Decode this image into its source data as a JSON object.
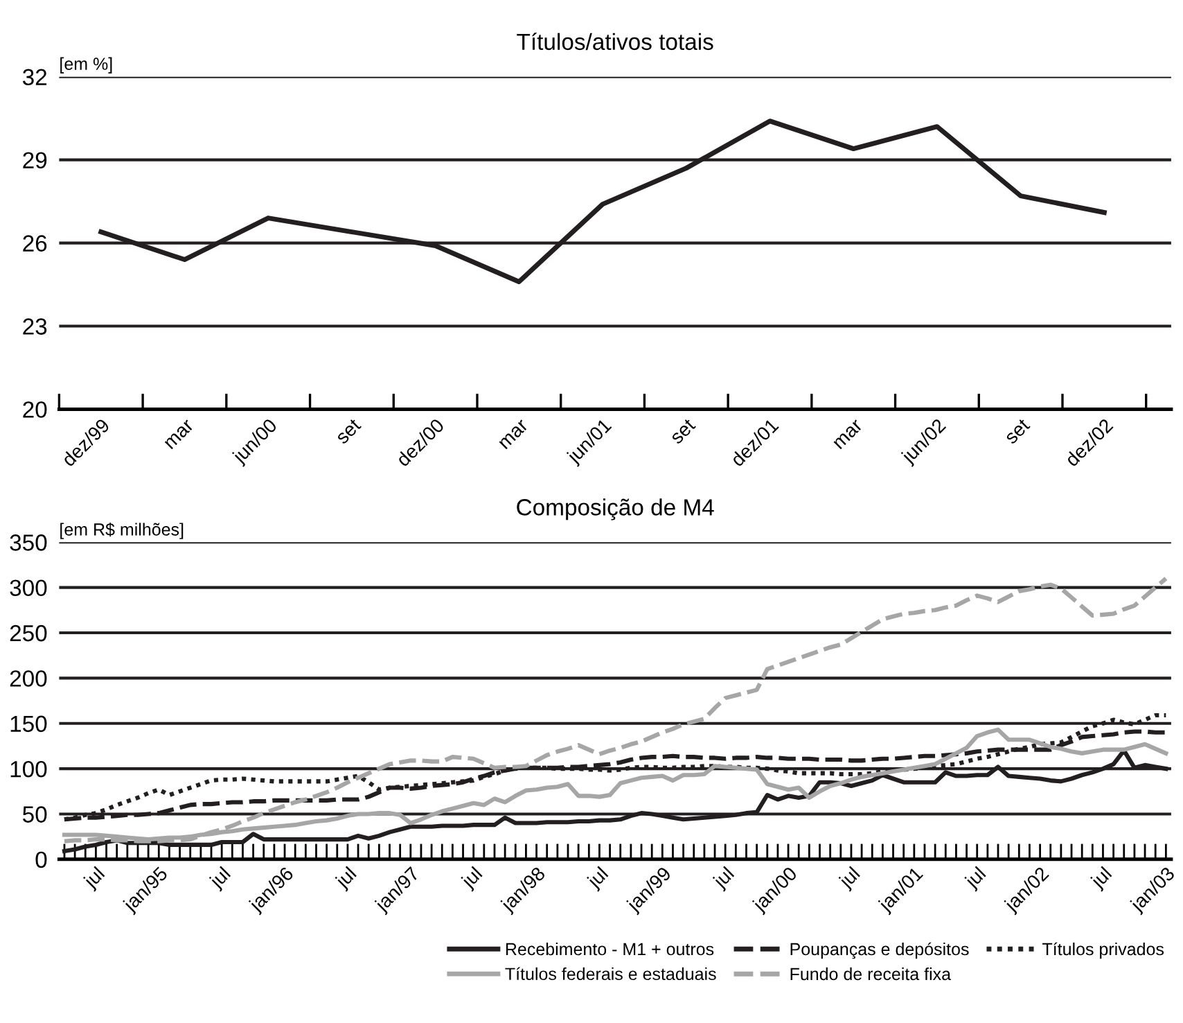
{
  "chart_data": [
    {
      "type": "line",
      "title": "Títulos/ativos totais",
      "ylabel": "[em %]",
      "categories": [
        "dez/99",
        "mar",
        "jun/00",
        "set",
        "dez/00",
        "mar",
        "jun/01",
        "set",
        "dez/01",
        "mar",
        "jun/02",
        "set",
        "dez/02"
      ],
      "series": [
        {
          "color": "#231f20",
          "line_style": "solid",
          "values": [
            26.4,
            25.4,
            26.9,
            26.4,
            25.9,
            24.6,
            27.4,
            28.7,
            30.4,
            29.4,
            30.2,
            27.7,
            27.1
          ]
        }
      ],
      "ylim": [
        20,
        32
      ],
      "yticks": [
        20,
        23,
        26,
        29,
        32
      ],
      "grid": "y",
      "legend": false
    },
    {
      "type": "line",
      "title": "Composição de M4",
      "ylabel": "[em R$ milhões]",
      "categories": [
        null,
        null,
        null,
        "jul",
        null,
        null,
        null,
        null,
        null,
        "jan/95",
        null,
        null,
        null,
        null,
        null,
        "jul",
        null,
        null,
        null,
        null,
        null,
        "jan/96",
        null,
        null,
        null,
        null,
        null,
        "jul",
        null,
        null,
        null,
        null,
        null,
        "jan/97",
        null,
        null,
        null,
        null,
        null,
        "jul",
        null,
        null,
        null,
        null,
        null,
        "jan/98",
        null,
        null,
        null,
        null,
        null,
        "jul",
        null,
        null,
        null,
        null,
        null,
        "jan/99",
        null,
        null,
        null,
        null,
        null,
        "jul",
        null,
        null,
        null,
        null,
        null,
        "jan/00",
        null,
        null,
        null,
        null,
        null,
        "jul",
        null,
        null,
        null,
        null,
        null,
        "jan/01",
        null,
        null,
        null,
        null,
        null,
        "jul",
        null,
        null,
        null,
        null,
        null,
        "jan/02",
        null,
        null,
        null,
        null,
        null,
        "jul",
        null,
        null,
        null,
        null,
        null,
        "jan/03"
      ],
      "series": [
        {
          "name": "Recebimento - M1 + outros",
          "color": "#231f20",
          "line_style": "solid",
          "values": [
            9,
            11,
            14,
            16,
            19,
            21,
            18,
            18,
            18,
            18,
            16,
            16,
            16,
            16,
            16,
            19,
            19,
            19,
            28,
            22,
            22,
            22,
            22,
            22,
            22,
            22,
            22,
            22,
            26,
            23,
            26,
            30,
            33,
            36,
            36,
            36,
            37,
            37,
            37,
            38,
            38,
            38,
            46,
            40,
            40,
            40,
            41,
            41,
            41,
            42,
            42,
            43,
            43,
            44,
            48,
            51,
            50,
            48,
            46,
            44,
            45,
            46,
            47,
            48,
            49,
            51,
            52,
            71,
            66,
            70,
            68,
            70,
            85,
            85,
            84,
            81,
            84,
            87,
            93,
            89,
            85,
            85,
            85,
            85,
            96,
            92,
            92,
            93,
            93,
            102,
            92,
            91,
            90,
            89,
            87,
            86,
            89,
            93,
            96,
            100,
            105,
            120,
            101,
            104,
            102,
            100
          ]
        },
        {
          "name": "Poupanças e depósitos",
          "color": "#231f20",
          "line_style": "dashed",
          "values": [
            44,
            45,
            46,
            46,
            47,
            48,
            49,
            49,
            50,
            51,
            54,
            57,
            60,
            61,
            61,
            62,
            63,
            63,
            64,
            64,
            65,
            65,
            65,
            65,
            65,
            65,
            66,
            66,
            66,
            69,
            74,
            79,
            79,
            78,
            79,
            81,
            82,
            83,
            85,
            89,
            92,
            96,
            98,
            100,
            101,
            101,
            101,
            101,
            102,
            102,
            103,
            104,
            105,
            107,
            110,
            112,
            113,
            113,
            114,
            113,
            113,
            112,
            112,
            111,
            112,
            112,
            113,
            112,
            112,
            111,
            111,
            111,
            110,
            110,
            110,
            109,
            109,
            110,
            111,
            111,
            112,
            113,
            114,
            114,
            115,
            116,
            117,
            119,
            120,
            121,
            121,
            121,
            121,
            121,
            121,
            126,
            130,
            135,
            136,
            137,
            138,
            140,
            141,
            141,
            140,
            140
          ]
        },
        {
          "name": "Títulos privados",
          "color": "#231f20",
          "line_style": "dotted",
          "values": [
            44,
            46,
            49,
            51,
            55,
            60,
            64,
            68,
            73,
            77,
            71,
            75,
            79,
            83,
            87,
            88,
            88,
            89,
            88,
            87,
            86,
            86,
            86,
            86,
            86,
            86,
            88,
            90,
            92,
            85,
            77,
            79,
            80,
            81,
            82,
            83,
            84,
            85,
            86,
            87,
            91,
            94,
            98,
            101,
            101,
            101,
            101,
            100,
            100,
            100,
            99,
            99,
            98,
            99,
            101,
            102,
            102,
            101,
            101,
            102,
            102,
            103,
            103,
            102,
            102,
            101,
            101,
            100,
            98,
            97,
            95,
            95,
            95,
            95,
            94,
            94,
            94,
            95,
            97,
            98,
            99,
            100,
            101,
            103,
            104,
            105,
            108,
            111,
            113,
            116,
            119,
            122,
            124,
            127,
            128,
            129,
            135,
            141,
            147,
            150,
            154,
            151,
            149,
            154,
            159,
            159
          ]
        },
        {
          "name": "Títulos federais e estaduais",
          "color": "#a6a6a6",
          "line_style": "solid",
          "values": [
            27,
            27,
            27,
            27,
            26,
            25,
            24,
            23,
            22,
            23,
            24,
            24,
            25,
            27,
            28,
            30,
            31,
            33,
            34,
            35,
            36,
            37,
            38,
            40,
            42,
            43,
            45,
            48,
            50,
            50,
            51,
            51,
            49,
            40,
            44,
            49,
            53,
            56,
            59,
            62,
            60,
            67,
            63,
            70,
            76,
            77,
            79,
            80,
            83,
            70,
            70,
            69,
            71,
            84,
            87,
            90,
            91,
            92,
            87,
            93,
            93,
            94,
            103,
            102,
            101,
            100,
            99,
            83,
            80,
            77,
            79,
            68,
            75,
            81,
            84,
            88,
            91,
            93,
            95,
            97,
            99,
            101,
            103,
            105,
            111,
            117,
            123,
            136,
            140,
            143,
            132,
            132,
            132,
            128,
            124,
            122,
            119,
            117,
            119,
            121,
            121,
            121,
            124,
            127,
            122,
            117
          ]
        },
        {
          "name": "Fundo de receita fixa",
          "color": "#a6a6a6",
          "line_style": "dashed",
          "values": [
            20,
            21,
            21,
            22,
            22,
            21,
            21,
            20,
            20,
            20,
            21,
            21,
            22,
            26,
            30,
            33,
            37,
            42,
            46,
            51,
            55,
            59,
            63,
            66,
            70,
            74,
            79,
            85,
            90,
            95,
            100,
            105,
            107,
            109,
            109,
            108,
            108,
            113,
            112,
            111,
            106,
            101,
            102,
            102,
            103,
            109,
            115,
            119,
            122,
            126,
            121,
            116,
            120,
            123,
            127,
            130,
            135,
            140,
            144,
            149,
            152,
            155,
            167,
            178,
            181,
            184,
            187,
            210,
            214,
            218,
            222,
            226,
            230,
            234,
            237,
            244,
            251,
            258,
            265,
            268,
            271,
            272,
            274,
            275,
            278,
            280,
            286,
            291,
            288,
            284,
            290,
            296,
            298,
            301,
            303,
            299,
            289,
            279,
            269,
            270,
            271,
            276,
            280,
            290,
            300,
            310
          ]
        }
      ],
      "ylim": [
        0,
        350
      ],
      "yticks": [
        0,
        50,
        100,
        150,
        200,
        250,
        300,
        350
      ],
      "grid": "y",
      "legend": "bottom right"
    }
  ]
}
